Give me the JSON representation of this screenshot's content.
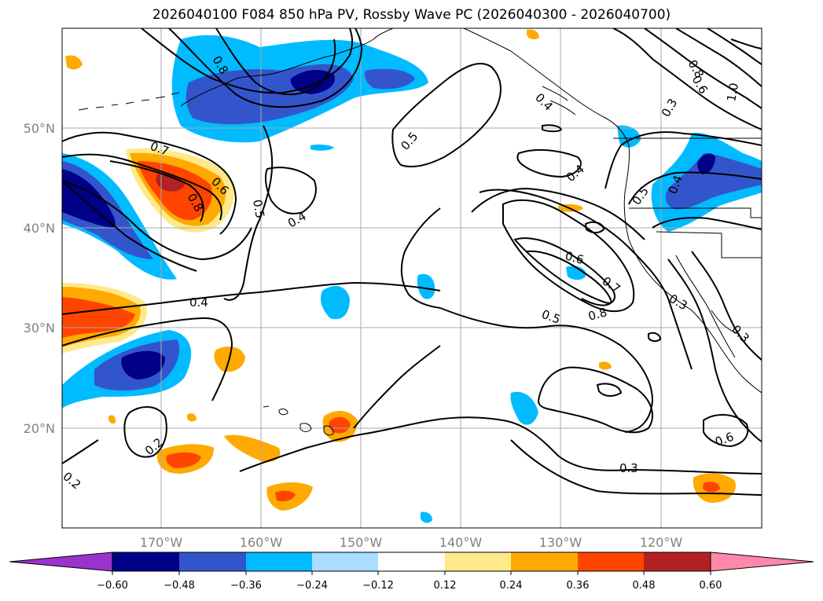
{
  "title": "2026040100 F084 850 hPa PV, Rossby Wave PC (2026040300 - 2026040700)",
  "lat_labels": [
    "50°N",
    "40°N",
    "30°N",
    "20°N"
  ],
  "lon_labels": [
    "170°W",
    "160°W",
    "150°W",
    "140°W",
    "130°W",
    "120°W"
  ],
  "colorbar": {
    "tick_labels": [
      "−0.60",
      "−0.48",
      "−0.36",
      "−0.24",
      "−0.12",
      "0.12",
      "0.24",
      "0.36",
      "0.48",
      "0.60"
    ],
    "colors": [
      "#9933cc",
      "#000088",
      "#3355cc",
      "#00bbff",
      "#aaddff",
      "#ffffff",
      "#ffe98a",
      "#ffaa00",
      "#ff4400",
      "#b22222",
      "#ff88aa"
    ]
  },
  "contour_labels": [
    "0.8",
    "0.7",
    "0.6",
    "0.8",
    "0.5",
    "0.4",
    "0.5",
    "0.4",
    "0.4",
    "0.6",
    "0.7",
    "0.8",
    "0.5",
    "0.3",
    "0.2",
    "0.2",
    "0.3",
    "0.6",
    "0.8",
    "0.6",
    "0.3",
    "1.0",
    "0.4",
    "0.5",
    "0.4",
    "0.3"
  ],
  "shading_colors": {
    "neg_weak": "#aaddff",
    "neg_mid": "#00bbff",
    "neg_strong": "#3355cc",
    "neg_max": "#000088",
    "pos_weak": "#ffe98a",
    "pos_mid": "#ffaa00",
    "pos_strong": "#ff4400",
    "pos_max": "#b22222"
  }
}
